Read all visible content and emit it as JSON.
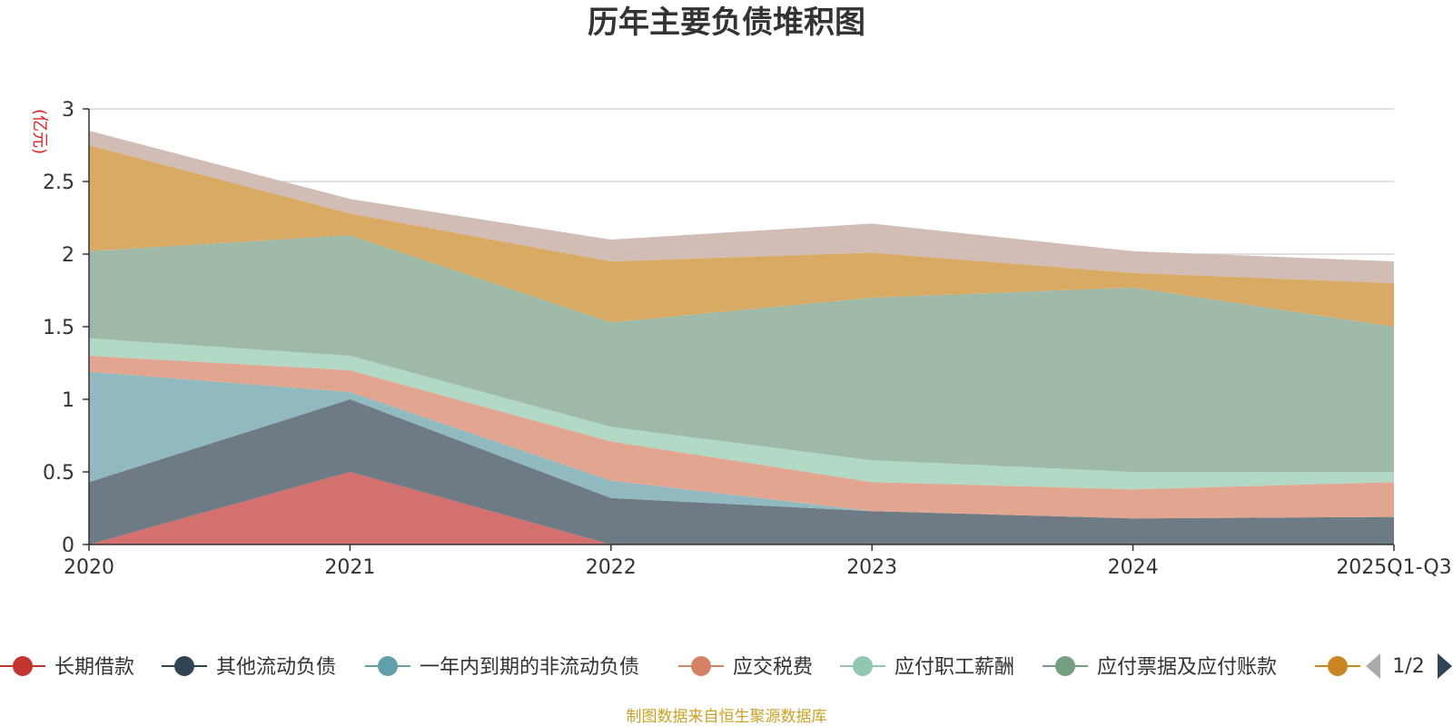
{
  "chart_data": {
    "type": "area",
    "stacked": true,
    "title": "历年主要负债堆积图",
    "ylabel": "(亿元)",
    "xlabel": "",
    "ylim": [
      0,
      3
    ],
    "yticks": [
      "0",
      "0.5",
      "1",
      "1.5",
      "2",
      "2.5",
      "3"
    ],
    "grid": true,
    "categories": [
      "2020",
      "2021",
      "2022",
      "2023",
      "2024",
      "2025Q1-Q3"
    ],
    "series": [
      {
        "name": "长期借款",
        "color": "#c23531",
        "fill": "#d4716e",
        "values": [
          0.0,
          0.5,
          0.0,
          0.0,
          0.0,
          0.0
        ]
      },
      {
        "name": "其他流动负债",
        "color": "#2f4554",
        "fill": "#6e7b85",
        "values": [
          0.43,
          0.5,
          0.32,
          0.23,
          0.18,
          0.19
        ]
      },
      {
        "name": "一年内到期的非流动负债",
        "color": "#61a0a8",
        "fill": "#90bac0",
        "values": [
          0.76,
          0.05,
          0.12,
          0.0,
          0.0,
          0.0
        ]
      },
      {
        "name": "应交税费",
        "color": "#d48265",
        "fill": "#e2a690",
        "values": [
          0.11,
          0.15,
          0.27,
          0.2,
          0.2,
          0.24
        ]
      },
      {
        "name": "应付职工薪酬",
        "color": "#91c7ae",
        "fill": "#b2d8c6",
        "values": [
          0.12,
          0.1,
          0.1,
          0.15,
          0.12,
          0.07
        ]
      },
      {
        "name": "应付票据及应付账款",
        "color": "#749f83",
        "fill": "#9eb9a7",
        "values": [
          0.6,
          0.83,
          0.72,
          1.12,
          1.27,
          1.0
        ]
      },
      {
        "name": "",
        "color": "#ca8622",
        "fill": "#d9aa63",
        "values": [
          0.73,
          0.15,
          0.42,
          0.31,
          0.1,
          0.3
        ]
      },
      {
        "name": "",
        "color": "#bda29a",
        "fill": "#d2bcb6",
        "values": [
          0.1,
          0.1,
          0.15,
          0.2,
          0.15,
          0.15
        ]
      }
    ],
    "legend_page": "1/2",
    "source_note": "制图数据来自恒生聚源数据库"
  }
}
